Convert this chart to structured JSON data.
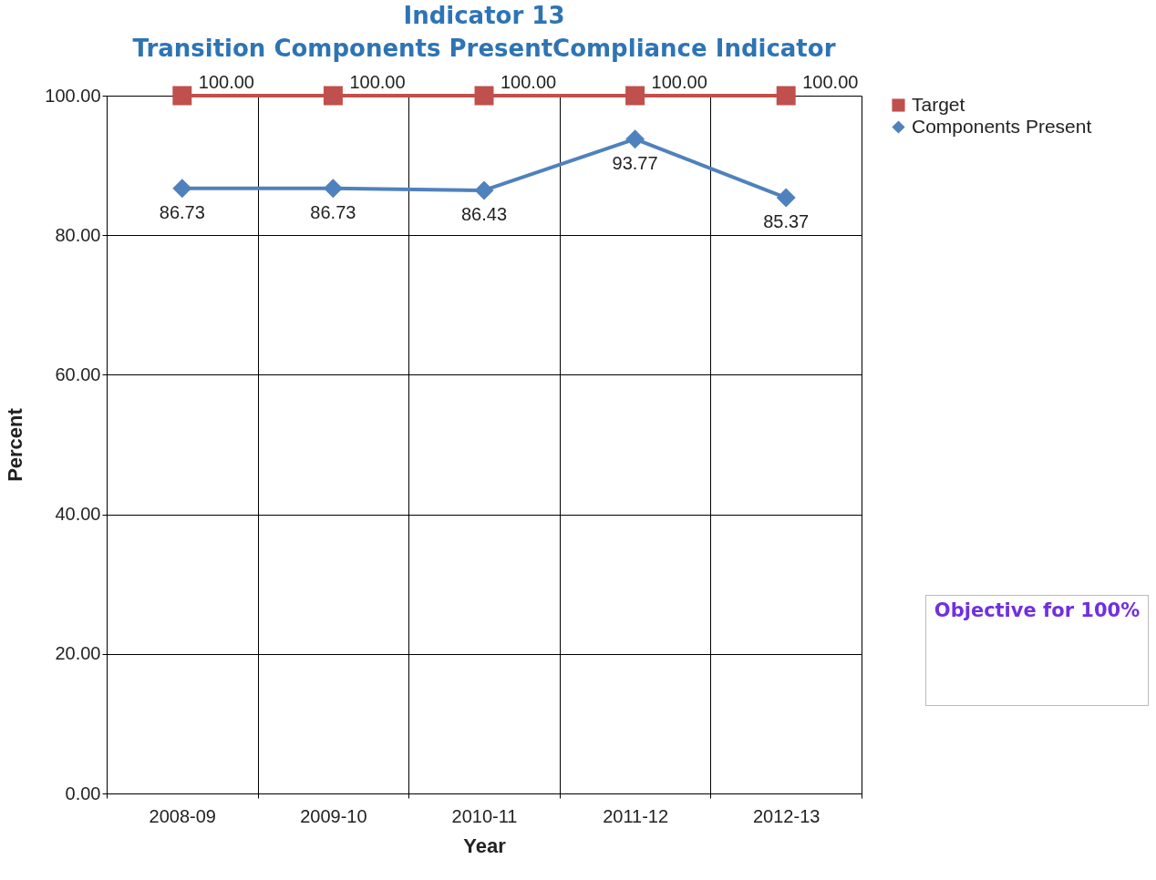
{
  "chart_data": {
    "type": "line",
    "title": "Indicator 13",
    "subtitle": "Transition Components PresentCompliance Indicator",
    "xlabel": "Year",
    "ylabel": "Percent",
    "categories": [
      "2008-09",
      "2009-10",
      "2010-11",
      "2011-12",
      "2012-13"
    ],
    "series": [
      {
        "name": "Target",
        "color": "#c0504d",
        "marker": "square",
        "values": [
          100,
          100,
          100,
          100,
          100
        ],
        "value_labels": [
          "100.00",
          "100.00",
          "100.00",
          "100.00",
          "100.00"
        ]
      },
      {
        "name": "Components Present",
        "color": "#4f81bd",
        "marker": "diamond",
        "values": [
          86.73,
          86.73,
          86.43,
          93.77,
          85.37
        ],
        "value_labels": [
          "86.73",
          "86.73",
          "86.43",
          "93.77",
          "85.37"
        ]
      }
    ],
    "ylim": [
      0,
      100
    ],
    "yticks": [
      {
        "value": 0,
        "label": "0.00"
      },
      {
        "value": 20,
        "label": "20.00"
      },
      {
        "value": 40,
        "label": "40.00"
      },
      {
        "value": 60,
        "label": "60.00"
      },
      {
        "value": 80,
        "label": "80.00"
      },
      {
        "value": 100,
        "label": "100.00"
      }
    ],
    "grid": true,
    "legend": "right",
    "line_style": "solid",
    "annotations": [
      "Objective for 100%"
    ]
  }
}
